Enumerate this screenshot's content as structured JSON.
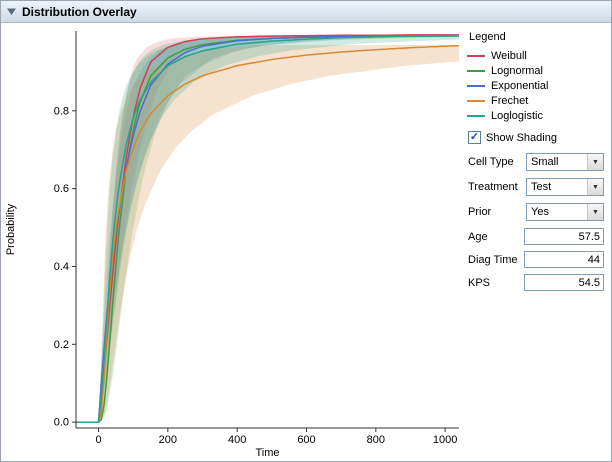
{
  "header": {
    "title": "Distribution Overlay"
  },
  "icons": {
    "combo_arrow": "▼",
    "checkmark": "✓",
    "disclosure": "open-triangle"
  },
  "legend": {
    "title": "Legend"
  },
  "controls": {
    "show_shading": {
      "label": "Show Shading",
      "checked": true
    },
    "dropdowns": [
      {
        "label": "Cell Type",
        "value": "Small"
      },
      {
        "label": "Treatment",
        "value": "Test"
      },
      {
        "label": "Prior",
        "value": "Yes"
      }
    ],
    "fields": [
      {
        "label": "Age",
        "value": "57.5"
      },
      {
        "label": "Diag Time",
        "value": "44"
      },
      {
        "label": "KPS",
        "value": "54.5"
      }
    ]
  },
  "chart_data": {
    "type": "line",
    "title": "",
    "xlabel": "Time",
    "ylabel": "Probability",
    "xlim": [
      -65,
      1040
    ],
    "ylim": [
      -0.015,
      1.005
    ],
    "grid": false,
    "legend_position": "right",
    "x_ticks": [
      [
        0,
        "0"
      ],
      [
        200,
        "200"
      ],
      [
        400,
        "400"
      ],
      [
        600,
        "600"
      ],
      [
        800,
        "800"
      ],
      [
        1000,
        "1000"
      ]
    ],
    "y_ticks": [
      [
        0,
        "0.0"
      ],
      [
        0.2,
        "0.2"
      ],
      [
        0.4,
        "0.4"
      ],
      [
        0.6,
        "0.6"
      ],
      [
        0.8,
        "0.8"
      ]
    ],
    "x": [
      0,
      10,
      20,
      30,
      40,
      50,
      60,
      80,
      100,
      120,
      150,
      200,
      250,
      300,
      400,
      500,
      600,
      700,
      800,
      900,
      1000,
      1100
    ],
    "series": [
      {
        "name": "Weibull",
        "color": "#ca4355",
        "band": [
          0.7,
          1.45
        ],
        "band_opacity": 0.18,
        "values": [
          0,
          0.074,
          0.172,
          0.274,
          0.372,
          0.463,
          0.546,
          0.682,
          0.784,
          0.857,
          0.925,
          0.963,
          0.978,
          0.985,
          0.99,
          0.992,
          0.993,
          0.994,
          0.994,
          0.995,
          0.995,
          0.995
        ]
      },
      {
        "name": "Lognormal",
        "color": "#3c9e47",
        "band": [
          0.6,
          1.6
        ],
        "band_opacity": 0.22,
        "values": [
          0,
          0.008,
          0.072,
          0.178,
          0.295,
          0.404,
          0.5,
          0.65,
          0.752,
          0.822,
          0.889,
          0.936,
          0.958,
          0.97,
          0.981,
          0.986,
          0.989,
          0.99,
          0.991,
          0.992,
          0.992,
          0.993
        ]
      },
      {
        "name": "Exponential",
        "color": "#4d6fd1",
        "band": [
          0.65,
          1.5
        ],
        "band_opacity": 0.2,
        "values": [
          0,
          0.125,
          0.234,
          0.33,
          0.413,
          0.487,
          0.551,
          0.656,
          0.736,
          0.798,
          0.865,
          0.92,
          0.95,
          0.966,
          0.98,
          0.986,
          0.989,
          0.991,
          0.992,
          0.993,
          0.993,
          0.994
        ]
      },
      {
        "name": "Frechet",
        "color": "#d9882f",
        "band": [
          0.45,
          2.4
        ],
        "band_opacity": 0.3,
        "band_color": "#dfa05f",
        "values": [
          0,
          0.03,
          0.174,
          0.311,
          0.417,
          0.497,
          0.558,
          0.646,
          0.705,
          0.747,
          0.792,
          0.839,
          0.869,
          0.89,
          0.916,
          0.932,
          0.943,
          0.951,
          0.957,
          0.962,
          0.966,
          0.969
        ]
      },
      {
        "name": "Loglogistic",
        "color": "#27a38a",
        "band": [
          0.55,
          1.8
        ],
        "band_opacity": 0.22,
        "values": [
          0,
          0.083,
          0.215,
          0.343,
          0.453,
          0.542,
          0.613,
          0.715,
          0.782,
          0.828,
          0.873,
          0.916,
          0.939,
          0.954,
          0.971,
          0.979,
          0.984,
          0.988,
          0.99,
          0.992,
          0.993,
          0.994
        ]
      }
    ]
  }
}
